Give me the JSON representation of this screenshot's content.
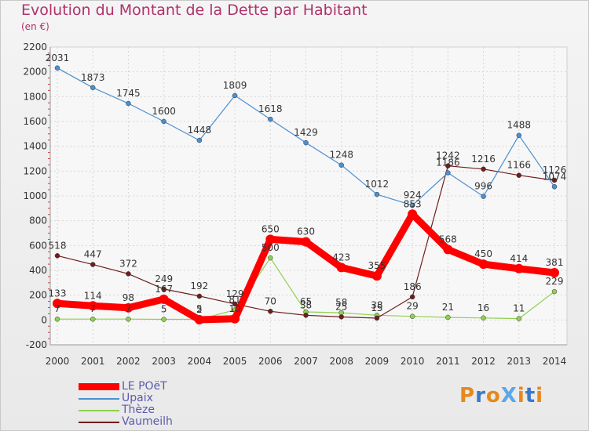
{
  "title": "Evolution du Montant de la Dette par Habitant",
  "subtitle": "(en €)",
  "logo_text": "ProXiti",
  "chart_data": {
    "type": "line",
    "title": "Evolution du Montant de la Dette par Habitant",
    "subtitle": "(en €)",
    "xlabel": "",
    "ylabel": "",
    "x": [
      "2000",
      "2001",
      "2002",
      "2003",
      "2004",
      "2005",
      "2006",
      "2007",
      "2008",
      "2009",
      "2010",
      "2011",
      "2012",
      "2013",
      "2014"
    ],
    "yticks": [
      "-200",
      "0",
      "200",
      "400",
      "600",
      "800",
      "1000",
      "1200",
      "1400",
      "1600",
      "1800",
      "2000",
      "2200"
    ],
    "ylim": [
      -200,
      2200
    ],
    "grid": true,
    "legend_position": "bottom-left",
    "series": [
      {
        "name": "LE POëT",
        "color": "#ff0000",
        "values": [
          133,
          114,
          98,
          167,
          2,
          10,
          650,
          630,
          423,
          355,
          853,
          568,
          450,
          414,
          381
        ]
      },
      {
        "name": "Upaix",
        "color": "#4a8fd0",
        "values": [
          2031,
          1873,
          1745,
          1600,
          1448,
          1809,
          1618,
          1429,
          1248,
          1012,
          924,
          1186,
          996,
          1488,
          1074
        ]
      },
      {
        "name": "Thèze",
        "color": "#8fd050",
        "values": [
          7,
          7,
          7,
          5,
          5,
          81,
          500,
          65,
          58,
          38,
          29,
          21,
          16,
          11,
          229
        ]
      },
      {
        "name": "Vaumeilh",
        "color": "#6e1e1e",
        "values": [
          518,
          447,
          372,
          249,
          192,
          129,
          70,
          38,
          25,
          15,
          186,
          1242,
          1216,
          1166,
          1126
        ]
      }
    ]
  }
}
